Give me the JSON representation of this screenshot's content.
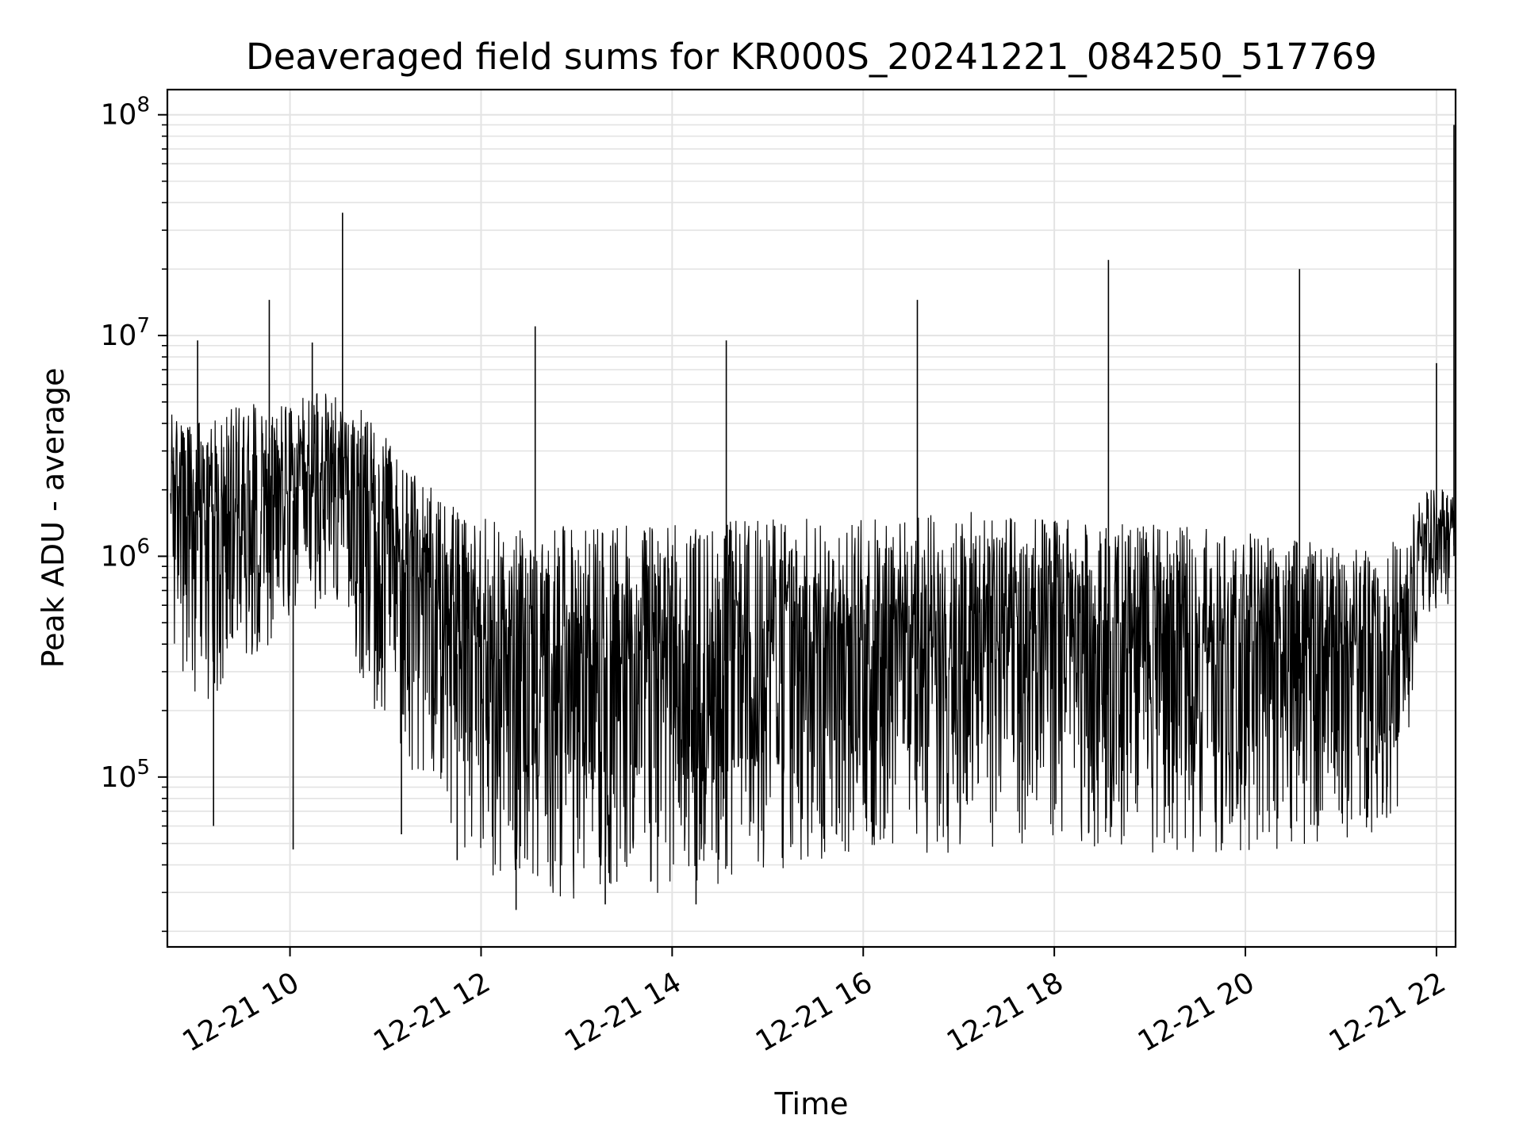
{
  "chart_data": {
    "type": "line",
    "title": "Deaveraged field sums for KR000S_20241221_084250_517769",
    "xlabel": "Time",
    "ylabel": "Peak ADU - average",
    "yscale": "log",
    "xlim": [
      "2024-12-21 08:43",
      "2024-12-21 22:12"
    ],
    "ylim": [
      17000,
      130000000
    ],
    "grid": true,
    "line_color": "#000000",
    "x_ticks": [
      "12-21 10",
      "12-21 12",
      "12-21 14",
      "12-21 16",
      "12-21 18",
      "12-21 20",
      "12-21 22"
    ],
    "y_ticks": [
      {
        "base": "10",
        "exp": "5",
        "value": 100000
      },
      {
        "base": "10",
        "exp": "6",
        "value": 1000000
      },
      {
        "base": "10",
        "exp": "7",
        "value": 10000000
      },
      {
        "base": "10",
        "exp": "8",
        "value": 100000000
      }
    ],
    "series": [
      {
        "x": [
          "2024-12-21 08:45",
          "2024-12-21 09:00",
          "2024-12-21 09:30",
          "2024-12-21 10:00",
          "2024-12-21 10:30",
          "2024-12-21 11:00",
          "2024-12-21 11:30",
          "2024-12-21 12:00",
          "2024-12-21 12:30",
          "2024-12-21 13:00",
          "2024-12-21 14:00",
          "2024-12-21 15:00",
          "2024-12-21 16:00",
          "2024-12-21 17:00",
          "2024-12-21 18:00",
          "2024-12-21 19:00",
          "2024-12-21 20:00",
          "2024-12-21 21:00",
          "2024-12-21 21:40",
          "2024-12-21 21:50",
          "2024-12-21 22:05",
          "2024-12-21 22:12"
        ],
        "y_max": [
          4500000,
          4000000,
          5000000,
          5000000,
          6000000,
          3500000,
          2000000,
          1500000,
          1300000,
          1400000,
          1400000,
          1500000,
          1500000,
          1600000,
          1500000,
          1400000,
          1300000,
          1100000,
          1200000,
          2000000,
          2200000,
          2000000
        ],
        "y_min": [
          400000,
          200000,
          300000,
          500000,
          500000,
          150000,
          80000,
          35000,
          30000,
          28000,
          30000,
          35000,
          40000,
          45000,
          50000,
          45000,
          45000,
          50000,
          60000,
          500000,
          600000,
          400000
        ],
        "spikes": [
          {
            "x": "2024-12-21 09:02",
            "y": 9500000
          },
          {
            "x": "2024-12-21 09:47",
            "y": 14500000
          },
          {
            "x": "2024-12-21 10:14",
            "y": 9300000
          },
          {
            "x": "2024-12-21 10:33",
            "y": 36000000
          },
          {
            "x": "2024-12-21 12:34",
            "y": 11000000
          },
          {
            "x": "2024-12-21 14:34",
            "y": 9500000
          },
          {
            "x": "2024-12-21 16:34",
            "y": 14500000
          },
          {
            "x": "2024-12-21 18:34",
            "y": 22000000
          },
          {
            "x": "2024-12-21 20:34",
            "y": 20000000
          },
          {
            "x": "2024-12-21 22:00",
            "y": 7500000
          },
          {
            "x": "2024-12-21 22:11",
            "y": 90000000
          }
        ],
        "dips": [
          {
            "x": "2024-12-21 09:12",
            "y": 60000
          },
          {
            "x": "2024-12-21 10:02",
            "y": 47000
          },
          {
            "x": "2024-12-21 11:10",
            "y": 55000
          },
          {
            "x": "2024-12-21 11:45",
            "y": 42000
          },
          {
            "x": "2024-12-21 12:22",
            "y": 25000
          },
          {
            "x": "2024-12-21 13:18",
            "y": 26500
          },
          {
            "x": "2024-12-21 14:15",
            "y": 26500
          }
        ]
      }
    ]
  }
}
